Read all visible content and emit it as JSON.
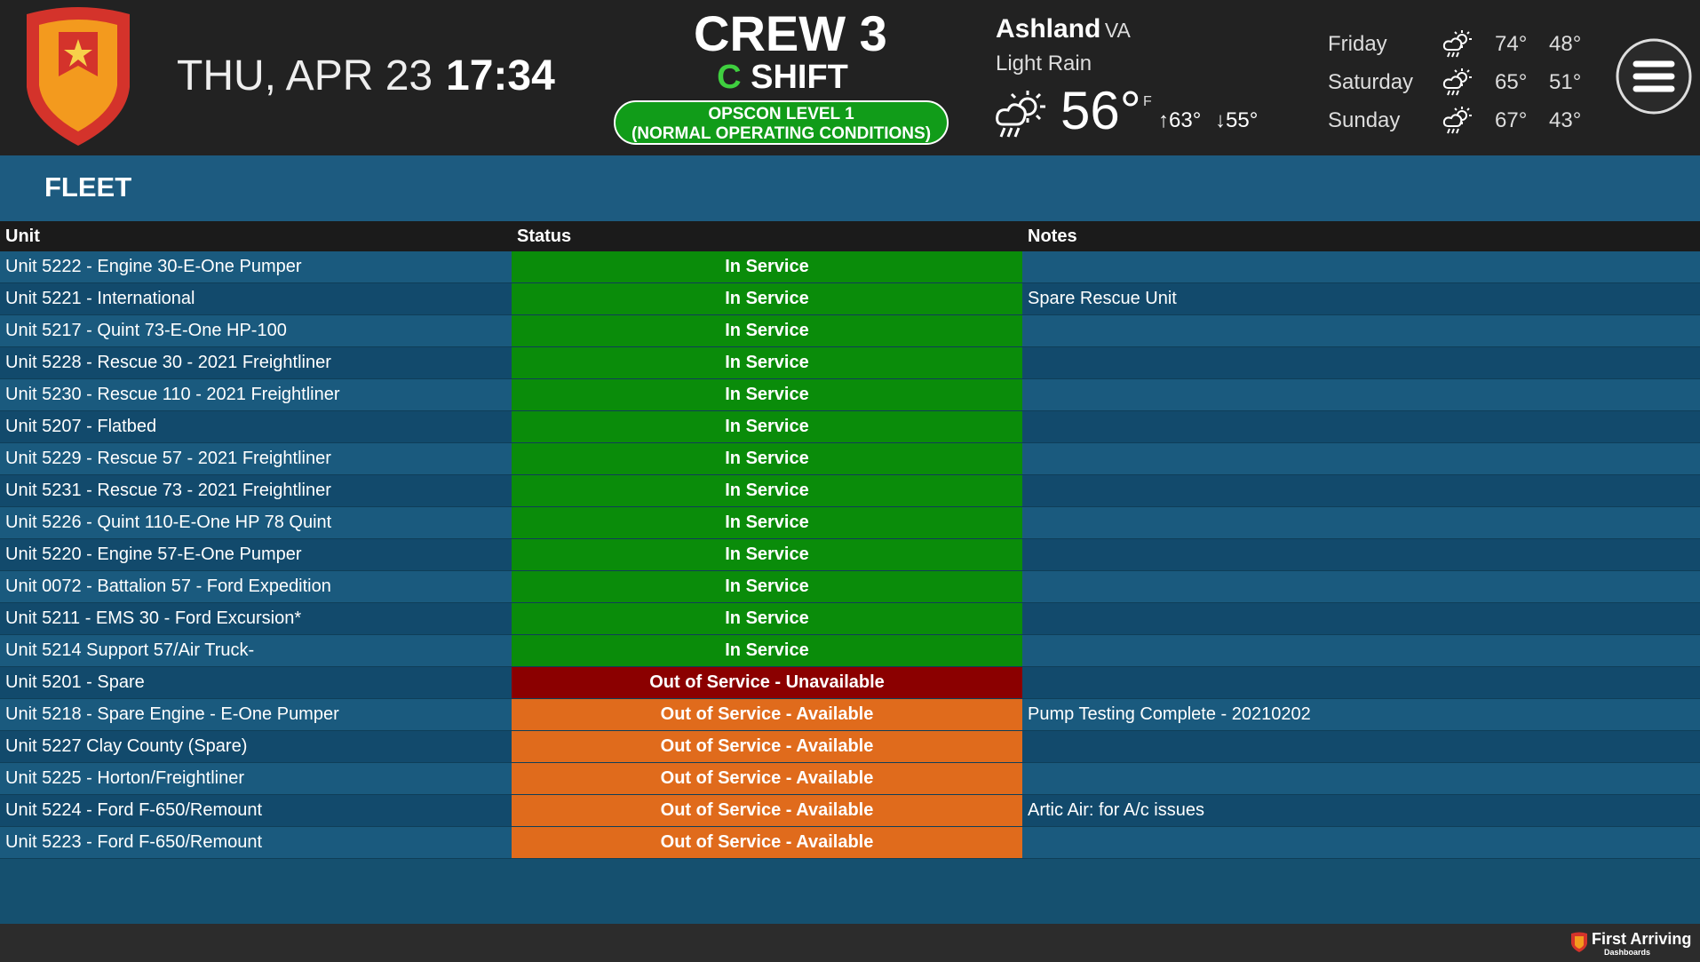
{
  "header": {
    "date": "THU, APR 23",
    "time": "17:34",
    "crew": "CREW 3",
    "shift_letter": "C",
    "shift": "SHIFT",
    "opscon_level": "OPSCON LEVEL 1",
    "opscon_desc": "(NORMAL OPERATING CONDITIONS)"
  },
  "weather": {
    "city": "Ashland",
    "state": "VA",
    "condition": "Light Rain",
    "temp": "56°",
    "unit": "F",
    "high": "63°",
    "low": "55°",
    "forecast": [
      {
        "day": "Friday",
        "high": "74°",
        "low": "48°"
      },
      {
        "day": "Saturday",
        "high": "65°",
        "low": "51°"
      },
      {
        "day": "Sunday",
        "high": "67°",
        "low": "43°"
      }
    ]
  },
  "fleet": {
    "title": "FLEET",
    "columns": [
      "Unit",
      "Status",
      "Notes"
    ],
    "status_colors": {
      "In Service": "#0a8c0a",
      "Out of Service - Unavailable": "#8b0000",
      "Out of Service - Available": "#e06b1c"
    },
    "rows": [
      {
        "unit": "Unit 5222 - Engine 30-E-One Pumper",
        "status": "In Service"
      },
      {
        "unit": "Unit 5221 - International",
        "status": "In Service",
        "notes": "Spare Rescue Unit"
      },
      {
        "unit": "Unit 5217 - Quint 73-E-One HP-100",
        "status": "In Service"
      },
      {
        "unit": "Unit 5228 - Rescue 30 - 2021 Freightliner",
        "status": "In Service"
      },
      {
        "unit": "Unit 5230 - Rescue 110 - 2021 Freightliner",
        "status": "In Service"
      },
      {
        "unit": "Unit 5207 - Flatbed",
        "status": "In Service"
      },
      {
        "unit": "Unit 5229 - Rescue 57 - 2021 Freightliner",
        "status": "In Service"
      },
      {
        "unit": "Unit 5231 - Rescue 73 - 2021 Freightliner",
        "status": "In Service"
      },
      {
        "unit": "Unit 5226 - Quint 110-E-One HP 78 Quint",
        "status": "In Service"
      },
      {
        "unit": "Unit 5220 - Engine 57-E-One Pumper",
        "status": "In Service"
      },
      {
        "unit": "Unit 0072 - Battalion 57 - Ford Expedition",
        "status": "In Service"
      },
      {
        "unit": "Unit 5211 - EMS 30 - Ford Excursion*",
        "status": "In Service"
      },
      {
        "unit": "Unit 5214 Support 57/Air Truck-",
        "status": "In Service"
      },
      {
        "unit": "Unit 5201 - Spare",
        "status": "Out of Service - Unavailable"
      },
      {
        "unit": "Unit 5218 - Spare Engine - E-One Pumper",
        "status": "Out of Service - Available",
        "notes": "Pump Testing Complete - 20210202"
      },
      {
        "unit": "Unit 5227 Clay County (Spare)",
        "status": "Out of Service - Available"
      },
      {
        "unit": "Unit 5225 - Horton/Freightliner",
        "status": "Out of Service - Available"
      },
      {
        "unit": "Unit 5224 - Ford F-650/Remount",
        "status": "Out of Service - Available",
        "notes": "Artic Air: for A/c issues"
      },
      {
        "unit": "Unit 5223 - Ford F-650/Remount",
        "status": "Out of Service - Available"
      }
    ]
  },
  "footer": {
    "brand": "First Arriving",
    "sub": "Dashboards"
  }
}
